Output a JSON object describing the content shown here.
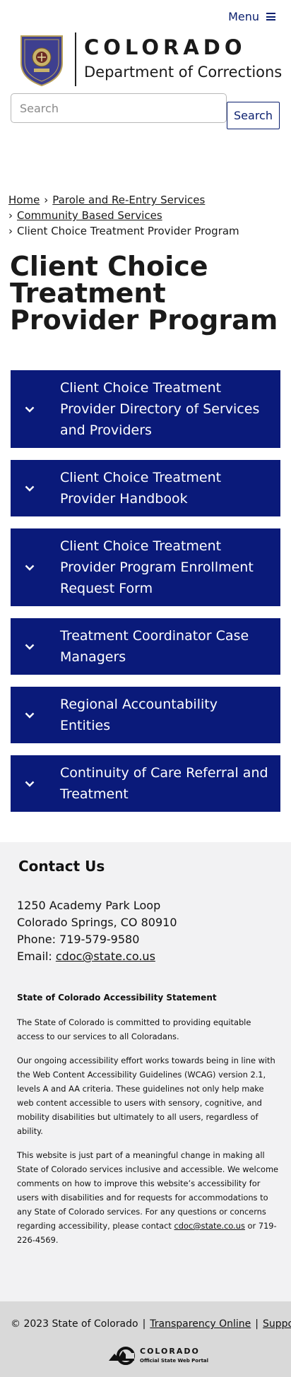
{
  "header": {
    "menu_label": "Menu",
    "org_name": "COLORADO",
    "dept_name": "Department of Corrections",
    "search_placeholder": "Search",
    "search_button": "Search"
  },
  "breadcrumb": {
    "home": "Home",
    "parole": "Parole and Re-Entry Services",
    "community": "Community Based Services",
    "current": "Client Choice Treatment Provider Program",
    "separator": "›"
  },
  "page": {
    "title": "Client Choice Treatment Provider Program"
  },
  "accordion": [
    {
      "label": "Client Choice Treatment Provider Directory of Services and Providers"
    },
    {
      "label": "Client Choice Treatment Provider Handbook"
    },
    {
      "label": "Client Choice Treatment Provider Program Enrollment Request Form"
    },
    {
      "label": "Treatment Coordinator Case Managers"
    },
    {
      "label": "Regional Accountability Entities"
    },
    {
      "label": "Continuity of Care Referral and Treatment"
    }
  ],
  "contact": {
    "title": "Contact Us",
    "address1": "1250 Academy Park Loop",
    "address2": "Colorado Springs, CO 80910",
    "phone": "Phone: 719-579-9580",
    "email_label": "Email: ",
    "email": "cdoc@state.co.us"
  },
  "accessibility": {
    "title": "State of Colorado Accessibility Statement",
    "p1": "The State of Colorado is committed to providing equitable access to our services to all Coloradans.",
    "p2": "Our ongoing accessibility effort works towards being in line with the Web Content Accessibility Guidelines (WCAG) version 2.1, levels A and AA criteria. These guidelines not only help make web content accessible to users with sensory, cognitive, and mobility disabilities but ultimately to all users, regardless of ability.",
    "p3_before": "This website is just part of a meaningful change in making all State of Colorado services inclusive and accessible. We welcome comments on how to improve this website’s accessibility for users with disabilities and for requests for accommodations to any State of Colorado services. For any questions or concerns regarding accessibility, please contact ",
    "p3_email": "cdoc@state.co.us",
    "p3_after": " or 719-226-4569."
  },
  "footer": {
    "copyright": "© 2023 State of Colorado",
    "pipe": "|",
    "transparency": "Transparency Online",
    "support": "Support",
    "portal_name": "COLORADO",
    "portal_sub": "Official State Web Portal"
  },
  "colors": {
    "brand_navy": "#0a1a7a",
    "contact_bg": "#f2f2f3",
    "footer_bg": "#d9d9d9"
  }
}
